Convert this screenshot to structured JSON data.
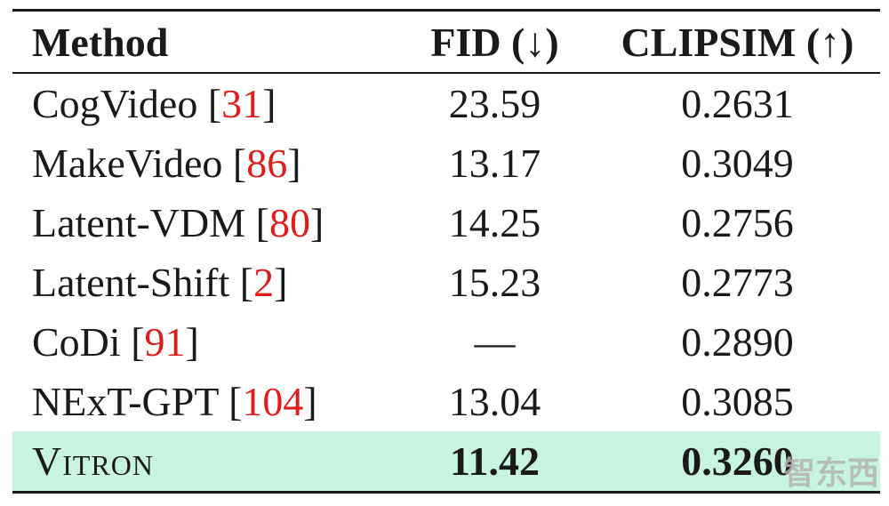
{
  "table": {
    "headers": {
      "method": "Method",
      "fid": "FID (↓)",
      "clipsim": "CLIPSIM (↑)"
    },
    "rows": [
      {
        "name": "CogVideo",
        "ref": "31",
        "fid": "23.59",
        "clipsim": "0.2631"
      },
      {
        "name": "MakeVideo",
        "ref": "86",
        "fid": "13.17",
        "clipsim": "0.3049"
      },
      {
        "name": "Latent-VDM",
        "ref": "80",
        "fid": "14.25",
        "clipsim": "0.2756"
      },
      {
        "name": "Latent-Shift",
        "ref": "2",
        "fid": "15.23",
        "clipsim": "0.2773"
      },
      {
        "name": "CoDi",
        "ref": "91",
        "fid": "—",
        "clipsim": "0.2890"
      },
      {
        "name": "NExT-GPT",
        "ref": "104",
        "fid": "13.04",
        "clipsim": "0.3085"
      }
    ],
    "highlight": {
      "name": "Vitron",
      "fid": "11.42",
      "clipsim": "0.3260"
    }
  },
  "watermark": {
    "text": "智东西",
    "color": "#b4b4b4"
  },
  "colors": {
    "reference": "#e21b1b",
    "highlight_bg": "#c8f5df"
  }
}
